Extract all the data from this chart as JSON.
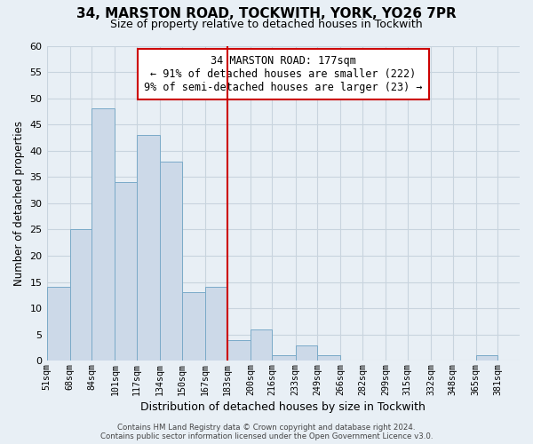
{
  "title": "34, MARSTON ROAD, TOCKWITH, YORK, YO26 7PR",
  "subtitle": "Size of property relative to detached houses in Tockwith",
  "xlabel": "Distribution of detached houses by size in Tockwith",
  "ylabel": "Number of detached properties",
  "bar_color": "#ccd9e8",
  "bar_edge_color": "#7aaac8",
  "bin_labels": [
    "51sqm",
    "68sqm",
    "84sqm",
    "101sqm",
    "117sqm",
    "134sqm",
    "150sqm",
    "167sqm",
    "183sqm",
    "200sqm",
    "216sqm",
    "233sqm",
    "249sqm",
    "266sqm",
    "282sqm",
    "299sqm",
    "315sqm",
    "332sqm",
    "348sqm",
    "365sqm",
    "381sqm"
  ],
  "bin_edges": [
    51,
    68,
    84,
    101,
    117,
    134,
    150,
    167,
    183,
    200,
    216,
    233,
    249,
    266,
    282,
    299,
    315,
    332,
    348,
    365,
    381,
    397
  ],
  "counts": [
    14,
    25,
    48,
    34,
    43,
    38,
    13,
    14,
    4,
    6,
    1,
    3,
    1,
    0,
    0,
    0,
    0,
    0,
    0,
    1,
    0
  ],
  "vline_x": 183,
  "vline_color": "#cc0000",
  "annotation_title": "34 MARSTON ROAD: 177sqm",
  "annotation_line1": "← 91% of detached houses are smaller (222)",
  "annotation_line2": "9% of semi-detached houses are larger (23) →",
  "annotation_box_color": "#ffffff",
  "annotation_box_edge": "#cc0000",
  "ylim": [
    0,
    60
  ],
  "yticks": [
    0,
    5,
    10,
    15,
    20,
    25,
    30,
    35,
    40,
    45,
    50,
    55,
    60
  ],
  "footer_line1": "Contains HM Land Registry data © Crown copyright and database right 2024.",
  "footer_line2": "Contains public sector information licensed under the Open Government Licence v3.0.",
  "grid_color": "#c8d4de",
  "background_color": "#e8eff5"
}
